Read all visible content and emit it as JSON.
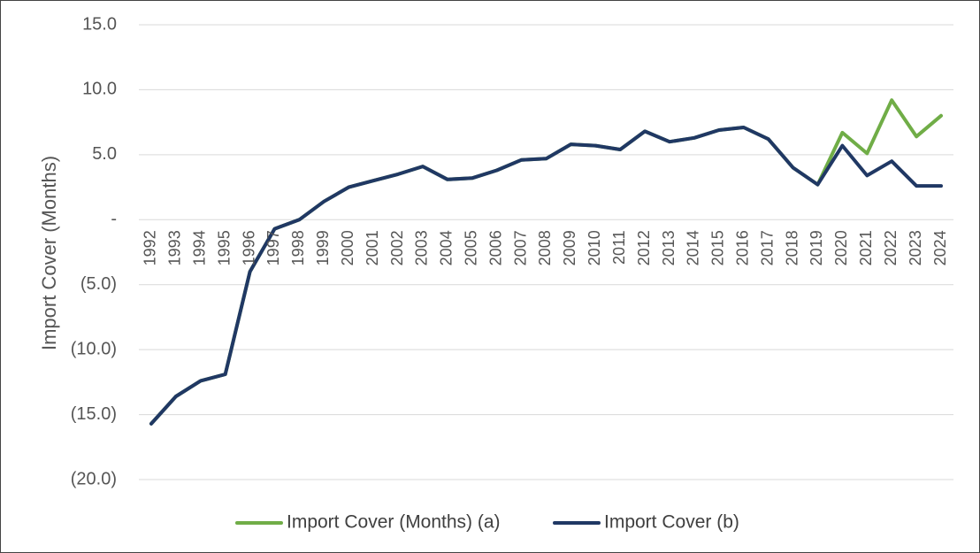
{
  "chart_data": {
    "type": "line",
    "ylabel": "Import Cover (Months)",
    "ylim": [
      -20,
      15
    ],
    "yticks": [
      15,
      10,
      5,
      0,
      -5,
      -10,
      -15,
      -20
    ],
    "ytick_labels": [
      "15.0",
      "10.0",
      "5.0",
      "-",
      "(5.0)",
      "(10.0)",
      "(15.0)",
      "(20.0)"
    ],
    "grid": true,
    "legend_position": "bottom",
    "categories": [
      "1992",
      "1993",
      "1994",
      "1995",
      "1996",
      "1997",
      "1998",
      "1999",
      "2000",
      "2001",
      "2002",
      "2003",
      "2004",
      "2005",
      "2006",
      "2007",
      "2008",
      "2009",
      "2010",
      "2011",
      "2012",
      "2013",
      "2014",
      "2015",
      "2016",
      "2017",
      "2018",
      "2019",
      "2020",
      "2021",
      "2022",
      "2023",
      "2024"
    ],
    "series": [
      {
        "name": "Import Cover (Months) (a)",
        "color": "#70ad47",
        "values": [
          -15.7,
          -13.6,
          -12.4,
          -11.9,
          -4.0,
          -0.7,
          0.0,
          1.4,
          2.5,
          3.0,
          3.5,
          4.1,
          3.1,
          3.2,
          3.8,
          4.6,
          4.7,
          5.8,
          5.7,
          5.4,
          6.8,
          6.0,
          6.3,
          6.9,
          7.1,
          6.2,
          4.0,
          2.7,
          6.7,
          5.1,
          9.2,
          6.4,
          8.0
        ]
      },
      {
        "name": "Import Cover (b)",
        "color": "#203864",
        "values": [
          -15.7,
          -13.6,
          -12.4,
          -11.9,
          -4.0,
          -0.7,
          0.0,
          1.4,
          2.5,
          3.0,
          3.5,
          4.1,
          3.1,
          3.2,
          3.8,
          4.6,
          4.7,
          5.8,
          5.7,
          5.4,
          6.8,
          6.0,
          6.3,
          6.9,
          7.1,
          6.2,
          4.0,
          2.7,
          5.7,
          3.4,
          4.5,
          2.6,
          2.6
        ]
      }
    ]
  }
}
